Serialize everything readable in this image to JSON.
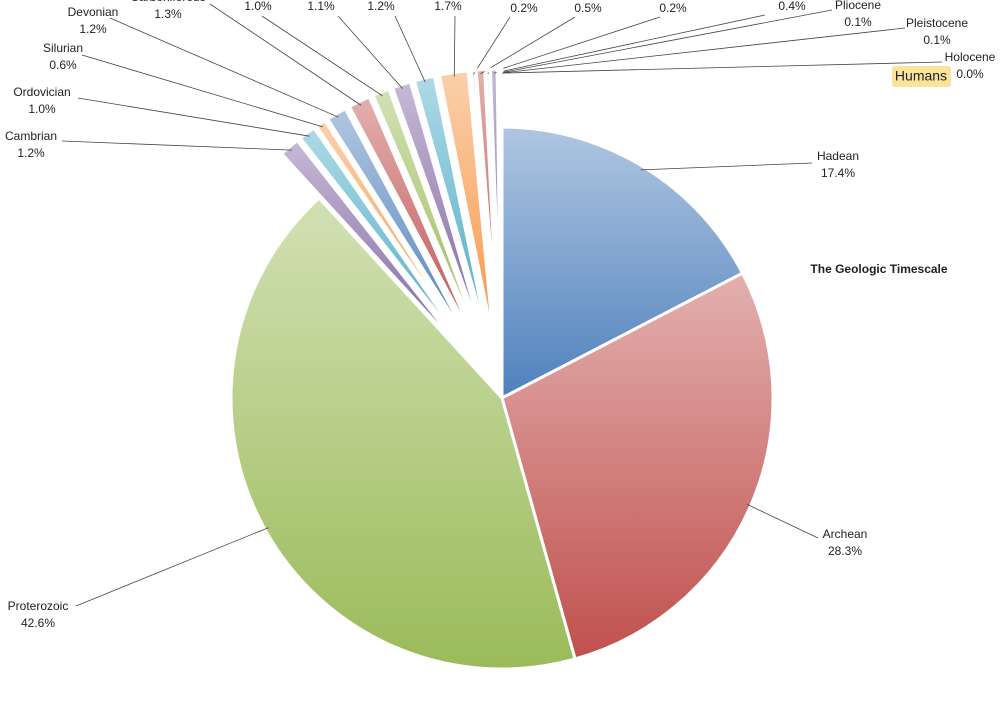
{
  "chart_data": {
    "type": "pie",
    "title": "The Geologic Timescale",
    "categories": [
      "Hadean",
      "Archean",
      "Proterozoic",
      "Cambrian",
      "Ordovician",
      "Silurian",
      "Devonian",
      "Carboniferous",
      null,
      null,
      null,
      null,
      null,
      null,
      null,
      null,
      "Pliocene",
      "Pleistocene",
      "Holocene"
    ],
    "values": [
      17.4,
      28.3,
      42.6,
      1.2,
      1.0,
      0.6,
      1.2,
      1.3,
      1.0,
      1.1,
      1.2,
      1.7,
      0.2,
      0.5,
      0.2,
      0.4,
      0.1,
      0.1,
      0.0
    ],
    "value_labels": [
      "17.4%",
      "28.3%",
      "42.6%",
      "1.2%",
      "1.0%",
      "0.6%",
      "1.2%",
      "1.3%",
      "1.0%",
      "1.1%",
      "1.2%",
      "1.7%",
      "0.2%",
      "0.5%",
      "0.2%",
      "0.4%",
      "0.1%",
      "0.1%",
      "0.0%"
    ],
    "colors": [
      "#4f81bd",
      "#c0504d",
      "#9bbb59",
      "#8064a2",
      "#4bacc6",
      "#f79646",
      "#4f81bd",
      "#c0504d",
      "#9bbb59",
      "#8064a2",
      "#4bacc6",
      "#f79646",
      "#4f81bd",
      "#c0504d",
      "#9bbb59",
      "#8064a2",
      "#4bacc6",
      "#f79646",
      "#4f81bd"
    ],
    "annotation": "Humans"
  }
}
